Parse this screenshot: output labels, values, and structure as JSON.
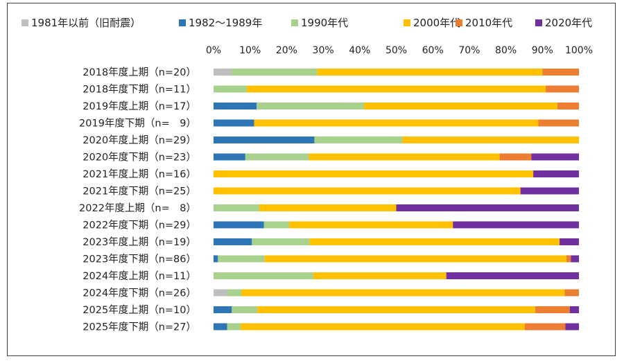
{
  "chart_data": {
    "type": "bar",
    "orientation": "horizontal",
    "stacked": true,
    "normalized": true,
    "legend_position": "top",
    "grid": false,
    "xlim": [
      0,
      100
    ],
    "x_ticks": [
      "0%",
      "10%",
      "20%",
      "30%",
      "40%",
      "50%",
      "60%",
      "70%",
      "80%",
      "90%",
      "100%"
    ],
    "categories": [
      "2018年度上期（n=20）",
      "2018年度下期（n=11）",
      "2019年度上期（n=17）",
      "2019年度下期（n=　9）",
      "2020年度上期（n=29）",
      "2020年度下期（n=23）",
      "2021年度上期（n=16）",
      "2021年度下期（n=25）",
      "2022年度上期（n=　8）",
      "2022年度下期（n=29）",
      "2023年度上期（n=19）",
      "2023年度下期（n=86）",
      "2024年度上期（n=11）",
      "2024年度下期（n=26）",
      "2025年度上期（n=10）",
      "2025年度下期（n=27）"
    ],
    "series": [
      {
        "name": "1981年以前（旧耐震）",
        "color": "#bfbfbf",
        "values": [
          5,
          0,
          0,
          0,
          0,
          0,
          0,
          0,
          0,
          0,
          0,
          0,
          0,
          3.8,
          0,
          0
        ]
      },
      {
        "name": "1982～1989年",
        "color": "#2e75b6",
        "values": [
          0,
          0,
          11.8,
          11.1,
          27.6,
          8.7,
          0,
          0,
          0,
          13.8,
          10.5,
          1.2,
          0,
          0,
          5,
          3.7
        ]
      },
      {
        "name": "1990年代",
        "color": "#a9d18e",
        "values": [
          23.3,
          9.1,
          29.4,
          0,
          24.1,
          17.4,
          0,
          0,
          12.5,
          6.9,
          15.8,
          12.8,
          27.3,
          3.8,
          7,
          3.7
        ]
      },
      {
        "name": "2000年代",
        "color": "#ffc000",
        "values": [
          61.7,
          81.8,
          52.9,
          77.8,
          48.3,
          52.2,
          87.5,
          84,
          37.5,
          44.8,
          68.4,
          82.6,
          36.4,
          88.5,
          76,
          77.8
        ]
      },
      {
        "name": "2010年代",
        "color": "#ed7d31",
        "values": [
          10,
          9.1,
          5.9,
          11.1,
          0,
          8.7,
          0,
          0,
          0,
          0,
          0,
          1.2,
          0,
          3.9,
          9.5,
          11.1
        ]
      },
      {
        "name": "2020年代",
        "color": "#7030a0",
        "values": [
          0,
          0,
          0,
          0,
          0,
          13,
          12.5,
          16,
          50,
          34.5,
          5.3,
          2.2,
          36.3,
          0,
          2.5,
          3.7
        ]
      }
    ]
  }
}
